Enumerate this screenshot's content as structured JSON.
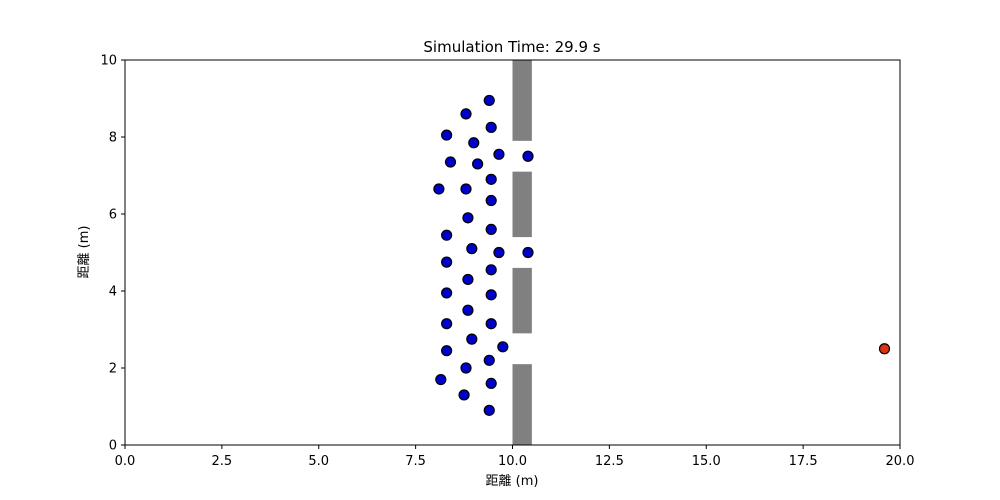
{
  "chart_data": {
    "type": "scatter",
    "title": "Simulation Time: 29.9 s",
    "xlabel": "距離 (m)",
    "ylabel": "距離 (m)",
    "xlim": [
      0,
      20
    ],
    "ylim": [
      0,
      10
    ],
    "x_ticks": [
      "0.0",
      "2.5",
      "5.0",
      "7.5",
      "10.0",
      "12.5",
      "15.0",
      "17.5",
      "20.0"
    ],
    "y_ticks": [
      "0",
      "2",
      "4",
      "6",
      "8",
      "10"
    ],
    "grid": false,
    "legend": "none",
    "walls": [
      {
        "x": [
          10.0,
          10.5
        ],
        "y": [
          7.9,
          10.0
        ]
      },
      {
        "x": [
          10.0,
          10.5
        ],
        "y": [
          5.4,
          7.1
        ]
      },
      {
        "x": [
          10.0,
          10.5
        ],
        "y": [
          2.9,
          4.6
        ]
      },
      {
        "x": [
          10.0,
          10.5
        ],
        "y": [
          0.0,
          2.1
        ]
      }
    ],
    "series": [
      {
        "color": "#0000cc",
        "points": [
          [
            9.4,
            8.95
          ],
          [
            8.8,
            8.6
          ],
          [
            8.3,
            8.05
          ],
          [
            9.45,
            8.25
          ],
          [
            9.0,
            7.85
          ],
          [
            9.65,
            7.55
          ],
          [
            8.4,
            7.35
          ],
          [
            9.1,
            7.3
          ],
          [
            10.4,
            7.5
          ],
          [
            8.1,
            6.65
          ],
          [
            8.8,
            6.65
          ],
          [
            9.45,
            6.9
          ],
          [
            9.45,
            6.35
          ],
          [
            8.85,
            5.9
          ],
          [
            9.45,
            5.6
          ],
          [
            8.3,
            5.45
          ],
          [
            8.95,
            5.1
          ],
          [
            9.65,
            5.0
          ],
          [
            10.4,
            5.0
          ],
          [
            8.3,
            4.75
          ],
          [
            9.45,
            4.55
          ],
          [
            8.85,
            4.3
          ],
          [
            8.3,
            3.95
          ],
          [
            9.45,
            3.9
          ],
          [
            8.85,
            3.5
          ],
          [
            8.3,
            3.15
          ],
          [
            9.45,
            3.15
          ],
          [
            8.95,
            2.75
          ],
          [
            9.75,
            2.55
          ],
          [
            8.3,
            2.45
          ],
          [
            9.4,
            2.2
          ],
          [
            8.8,
            2.0
          ],
          [
            8.15,
            1.7
          ],
          [
            9.45,
            1.6
          ],
          [
            8.75,
            1.3
          ],
          [
            9.4,
            0.9
          ]
        ]
      },
      {
        "color": "#dd3311",
        "points": [
          [
            19.6,
            2.5
          ]
        ]
      }
    ]
  }
}
